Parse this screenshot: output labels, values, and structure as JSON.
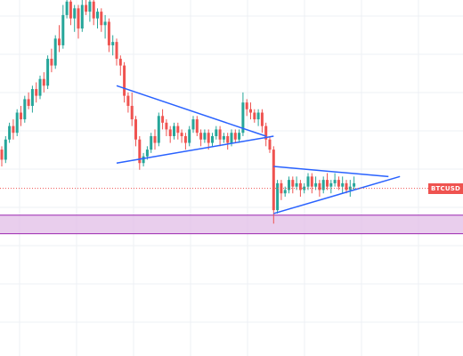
{
  "chart_data": {
    "type": "candlestick",
    "symbol_label": "BTCUSD",
    "grid": true,
    "colors": {
      "bull": "#26a69a",
      "bear": "#ef5350",
      "trendline": "#2962ff",
      "zone_fill": "#e1bee7",
      "zone_border": "#9c27b0",
      "price_line": "#ef5350",
      "grid": "#eef0f4"
    },
    "price_range": [
      0,
      100
    ],
    "current_price": 43.5,
    "support_zone": {
      "low": 30.0,
      "high": 35.5
    },
    "candles": [
      [
        55,
        52,
        56,
        50
      ],
      [
        52,
        58,
        59,
        51
      ],
      [
        58,
        62,
        63,
        57
      ],
      [
        62,
        60,
        64,
        58
      ],
      [
        60,
        66,
        67,
        59
      ],
      [
        66,
        64,
        68,
        62
      ],
      [
        64,
        70,
        71,
        63
      ],
      [
        70,
        68,
        72,
        67
      ],
      [
        68,
        73,
        74,
        66
      ],
      [
        73,
        71,
        75,
        69
      ],
      [
        71,
        76,
        77,
        70
      ],
      [
        76,
        74,
        78,
        72
      ],
      [
        74,
        82,
        83,
        73
      ],
      [
        82,
        80,
        85,
        78
      ],
      [
        80,
        88,
        89,
        79
      ],
      [
        88,
        86,
        92,
        84
      ],
      [
        86,
        95,
        98,
        85
      ],
      [
        95,
        99,
        101,
        94
      ],
      [
        99,
        94,
        101,
        92
      ],
      [
        94,
        97,
        98,
        90
      ],
      [
        97,
        91,
        98,
        88
      ],
      [
        91,
        98,
        101,
        90
      ],
      [
        98,
        96,
        103,
        95
      ],
      [
        96,
        99,
        101,
        93
      ],
      [
        99,
        94,
        100,
        92
      ],
      [
        94,
        96,
        97,
        91
      ],
      [
        96,
        92,
        97,
        90
      ],
      [
        92,
        93,
        95,
        88
      ],
      [
        93,
        86,
        94,
        84
      ],
      [
        86,
        87,
        89,
        83
      ],
      [
        87,
        82,
        88,
        80
      ],
      [
        82,
        80,
        83,
        77
      ],
      [
        80,
        71,
        81,
        69
      ],
      [
        71,
        68,
        72,
        66
      ],
      [
        68,
        64,
        72,
        62
      ],
      [
        64,
        58,
        65,
        56
      ],
      [
        58,
        51,
        59,
        49
      ],
      [
        51,
        53,
        54,
        50
      ],
      [
        53,
        55,
        56,
        52
      ],
      [
        55,
        59,
        60,
        54
      ],
      [
        59,
        57,
        61,
        55
      ],
      [
        57,
        65,
        66,
        56
      ],
      [
        65,
        63,
        67,
        61
      ],
      [
        63,
        61,
        64,
        59
      ],
      [
        61,
        59,
        62,
        57
      ],
      [
        59,
        62,
        63,
        58
      ],
      [
        62,
        60,
        63,
        58
      ],
      [
        60,
        59,
        61,
        57
      ],
      [
        59,
        57,
        60,
        55
      ],
      [
        57,
        61,
        62,
        56
      ],
      [
        61,
        64,
        65,
        60
      ],
      [
        64,
        60,
        65,
        59
      ],
      [
        60,
        58,
        61,
        56
      ],
      [
        58,
        60,
        61,
        57
      ],
      [
        60,
        57,
        61,
        55
      ],
      [
        57,
        59,
        60,
        56
      ],
      [
        59,
        61,
        62,
        58
      ],
      [
        61,
        58,
        62,
        56
      ],
      [
        58,
        59,
        60,
        57
      ],
      [
        59,
        57,
        60,
        55
      ],
      [
        57,
        60,
        61,
        56
      ],
      [
        60,
        58,
        61,
        57
      ],
      [
        58,
        60,
        61,
        57
      ],
      [
        60,
        69,
        72,
        59
      ],
      [
        69,
        67,
        70,
        65
      ],
      [
        67,
        66,
        69,
        64
      ],
      [
        66,
        64,
        67,
        63
      ],
      [
        64,
        66,
        67,
        62
      ],
      [
        66,
        62,
        67,
        60
      ],
      [
        62,
        58,
        63,
        56
      ],
      [
        58,
        55,
        59,
        54
      ],
      [
        55,
        37,
        56,
        33
      ],
      [
        37,
        45,
        46,
        36
      ],
      [
        45,
        42,
        46,
        40
      ],
      [
        42,
        43,
        44,
        41
      ],
      [
        43,
        46,
        47,
        42
      ],
      [
        46,
        44,
        47,
        42
      ],
      [
        44,
        45,
        47,
        43
      ],
      [
        45,
        43,
        46,
        41
      ],
      [
        43,
        44,
        45,
        42
      ],
      [
        44,
        47,
        48,
        43
      ],
      [
        47,
        44,
        48,
        42
      ],
      [
        44,
        45,
        47,
        43
      ],
      [
        45,
        43,
        46,
        41
      ],
      [
        43,
        46,
        47,
        42
      ],
      [
        46,
        44,
        48,
        43
      ],
      [
        44,
        45,
        46,
        42
      ],
      [
        45,
        46,
        48,
        44
      ],
      [
        46,
        44,
        47,
        43
      ],
      [
        44,
        45,
        47,
        42
      ],
      [
        45,
        43,
        46,
        42
      ],
      [
        43,
        44,
        46,
        41
      ],
      [
        44,
        45,
        47,
        43
      ]
    ],
    "trendlines": [
      {
        "from": [
          30,
          74
        ],
        "to": [
          69,
          59
        ]
      },
      {
        "from": [
          30,
          51
        ],
        "to": [
          71,
          59
        ]
      },
      {
        "from": [
          71,
          50
        ],
        "to": [
          101,
          47
        ]
      },
      {
        "from": [
          71,
          36
        ],
        "to": [
          104,
          47
        ]
      }
    ]
  }
}
